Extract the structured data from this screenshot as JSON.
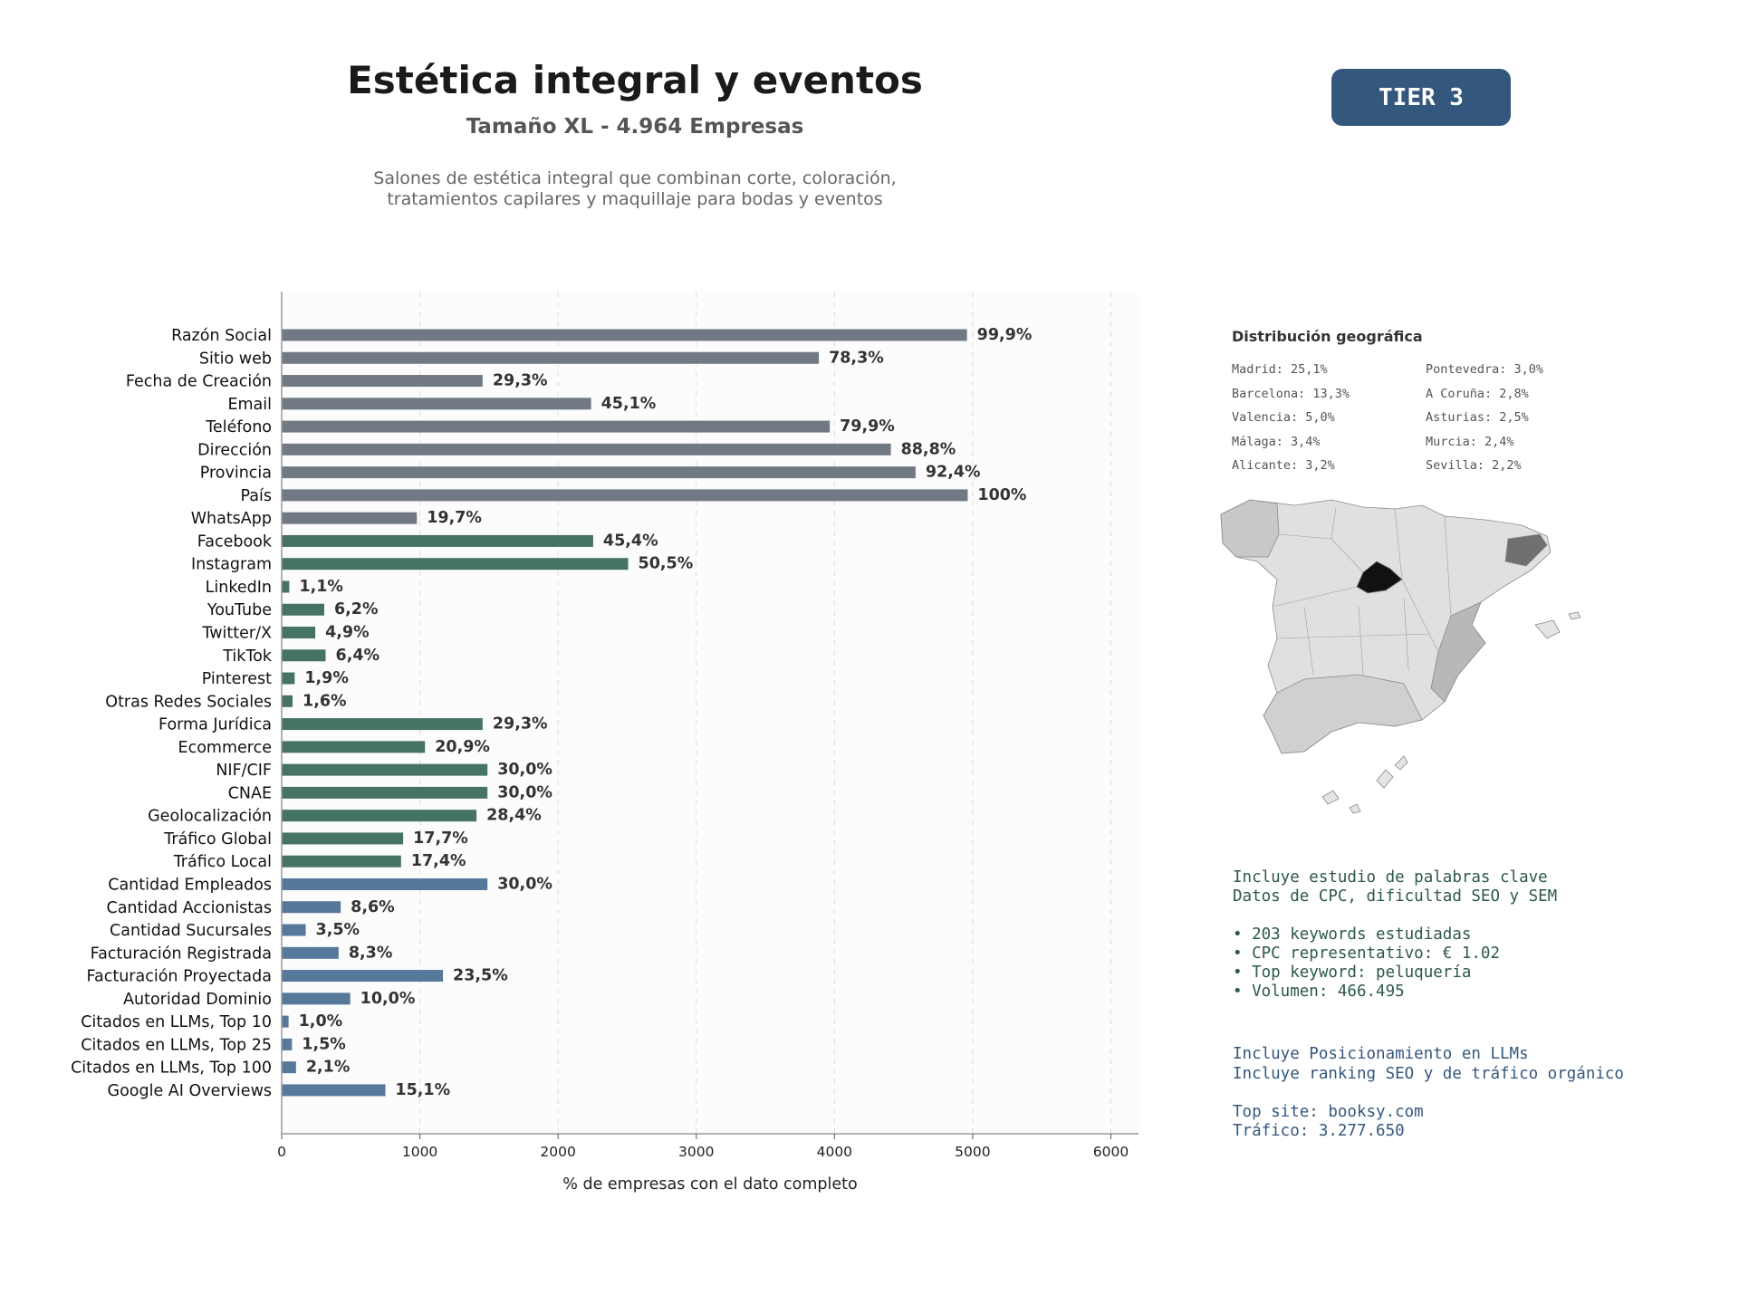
{
  "header": {
    "title": "Estética integral y eventos",
    "subtitle": "Tamaño XL - 4.964 Empresas",
    "description_line1": "Salones de estética integral que combinan corte, coloración,",
    "description_line2": "tratamientos capilares y maquillaje para bodas y eventos",
    "tier": "TIER 3"
  },
  "colors": {
    "gray": "#717a84",
    "green": "#467462",
    "blue": "#56789a",
    "tier_bg": "#34587d"
  },
  "chart_data": {
    "type": "bar",
    "orientation": "horizontal",
    "xlabel": "% de empresas con el dato completo",
    "xlim": [
      0,
      6200
    ],
    "xticks": [
      0,
      1000,
      2000,
      3000,
      4000,
      5000,
      6000
    ],
    "grid": "vertical dashed",
    "categories": [
      "Razón Social",
      "Sitio web",
      "Fecha de Creación",
      "Email",
      "Teléfono",
      "Dirección",
      "Provincia",
      "País",
      "WhatsApp",
      "Facebook",
      "Instagram",
      "LinkedIn",
      "YouTube",
      "Twitter/X",
      "TikTok",
      "Pinterest",
      "Otras Redes Sociales",
      "Forma Jurídica",
      "Ecommerce",
      "NIF/CIF",
      "CNAE",
      "Geolocalización",
      "Tráfico Global",
      "Tráfico Local",
      "Cantidad Empleados",
      "Cantidad Accionistas",
      "Cantidad Sucursales",
      "Facturación Registrada",
      "Facturación Proyectada",
      "Autoridad Dominio",
      "Citados en LLMs, Top 10",
      "Citados en LLMs, Top 25",
      "Citados en LLMs, Top 100",
      "Google AI Overviews"
    ],
    "values": [
      4959,
      3887,
      1454,
      2239,
      3966,
      4408,
      4587,
      4964,
      978,
      2254,
      2507,
      55,
      308,
      243,
      318,
      94,
      79,
      1454,
      1037,
      1489,
      1489,
      1410,
      879,
      864,
      1489,
      427,
      174,
      412,
      1167,
      496,
      50,
      74,
      104,
      750
    ],
    "labels": [
      "99,9%",
      "78,3%",
      "29,3%",
      "45,1%",
      "79,9%",
      "88,8%",
      "92,4%",
      "100%",
      "19,7%",
      "45,4%",
      "50,5%",
      "1,1%",
      "6,2%",
      "4,9%",
      "6,4%",
      "1,9%",
      "1,6%",
      "29,3%",
      "20,9%",
      "30,0%",
      "30,0%",
      "28,4%",
      "17,7%",
      "17,4%",
      "30,0%",
      "8,6%",
      "3,5%",
      "8,3%",
      "23,5%",
      "10,0%",
      "1,0%",
      "1,5%",
      "2,1%",
      "15,1%"
    ],
    "groups": [
      "gray",
      "gray",
      "gray",
      "gray",
      "gray",
      "gray",
      "gray",
      "gray",
      "gray",
      "green",
      "green",
      "green",
      "green",
      "green",
      "green",
      "green",
      "green",
      "green",
      "green",
      "green",
      "green",
      "green",
      "green",
      "green",
      "blue",
      "blue",
      "blue",
      "blue",
      "blue",
      "blue",
      "blue",
      "blue",
      "blue",
      "blue"
    ]
  },
  "geo": {
    "title": "Distribución geográfica",
    "col1": [
      "Madrid: 25,1%",
      "Barcelona: 13,3%",
      "Valencia: 5,0%",
      "Málaga: 3,4%",
      "Alicante: 3,2%"
    ],
    "col2": [
      "Pontevedra: 3,0%",
      "A Coruña: 2,8%",
      "Asturias: 2,5%",
      "Murcia: 2,4%",
      "Sevilla: 2,2%"
    ]
  },
  "seo": {
    "line1": "Incluye estudio de palabras clave",
    "line2": "Datos de CPC, dificultad SEO y SEM",
    "bullet1": "• 203 keywords estudiadas",
    "bullet2": "• CPC representativo: € 1.02",
    "bullet3": "• Top keyword: peluquería",
    "bullet4": "• Volumen: 466.495"
  },
  "llm": {
    "line1": "Incluye Posicionamiento en LLMs",
    "line2": "Incluye ranking SEO y de tráfico orgánico",
    "site": "Top site: booksy.com",
    "traffic": "Tráfico: 3.277.650"
  }
}
